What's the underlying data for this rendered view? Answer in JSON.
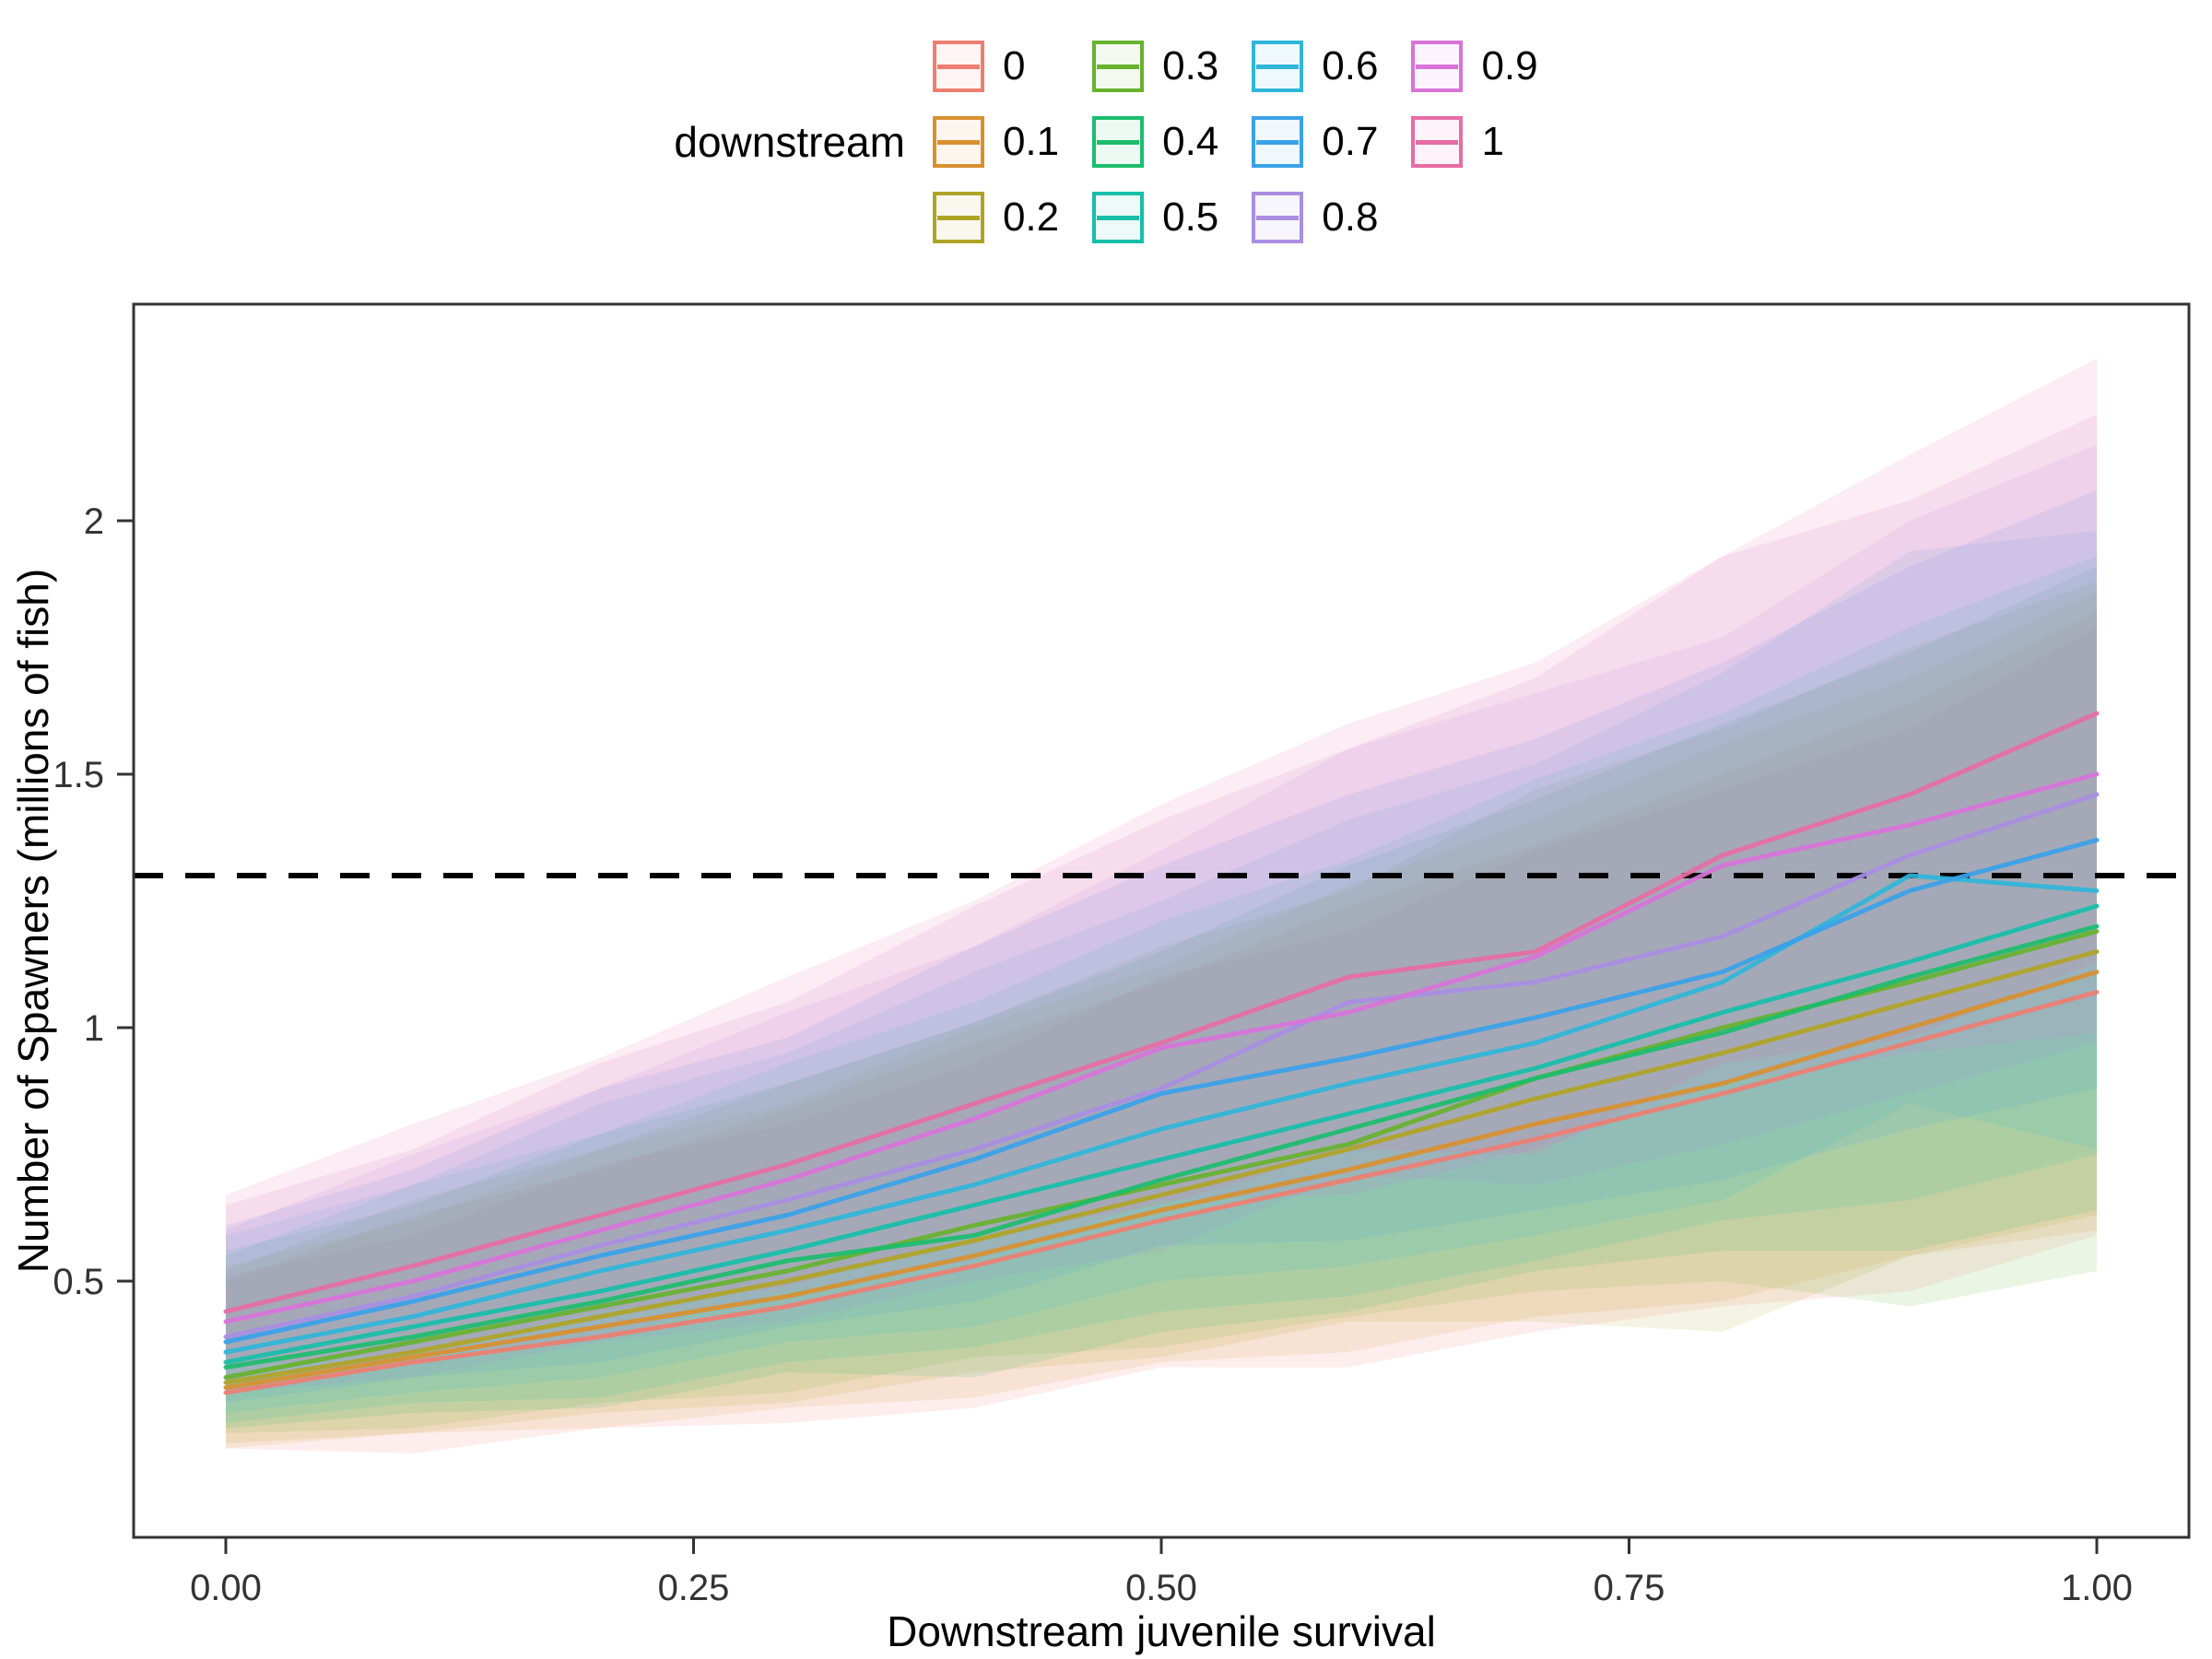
{
  "figure": {
    "background": "#ffffff",
    "panel_border_color": "#333333",
    "tick_color": "#333333",
    "tick_label_color": "#333333",
    "axis_title_color": "#000000"
  },
  "legend": {
    "title": "downstream",
    "rows": 3,
    "position": "top"
  },
  "chart_data": {
    "type": "line",
    "title": "",
    "xlabel": "Downstream juvenile survival",
    "ylabel": "Number of Spawners (millions of fish)",
    "legend_title": "downstream",
    "legend_position": "top",
    "grid": false,
    "xlim": [
      -0.05,
      1.05
    ],
    "ylim": [
      0,
      2.43
    ],
    "x_ticks": {
      "labels": [
        "0.00",
        "0.25",
        "0.50",
        "0.75",
        "1.00"
      ],
      "values": [
        0,
        0.25,
        0.5,
        0.75,
        1
      ]
    },
    "y_ticks": {
      "labels": [
        "0.5",
        "1",
        "1.5",
        "2"
      ],
      "values": [
        0.5,
        1,
        1.5,
        2
      ]
    },
    "reference_line": {
      "y": 1.3,
      "style": "dashed",
      "color": "#000000"
    },
    "ribbon_opacity": 0.13,
    "x": [
      0,
      0.1,
      0.2,
      0.3,
      0.4,
      0.5,
      0.6,
      0.7,
      0.8,
      0.9,
      1.0
    ],
    "series": [
      {
        "name": "0",
        "color": "#ee7e72",
        "values": [
          0.28,
          0.34,
          0.39,
          0.45,
          0.53,
          0.62,
          0.7,
          0.78,
          0.87,
          0.97,
          1.07
        ],
        "lower": [
          0.17,
          0.16,
          0.21,
          0.22,
          0.25,
          0.33,
          0.33,
          0.4,
          0.45,
          0.48,
          0.59
        ],
        "upper": [
          0.51,
          0.59,
          0.73,
          0.81,
          0.93,
          1.1,
          1.19,
          1.35,
          1.47,
          1.59,
          1.79
        ]
      },
      {
        "name": "0.1",
        "color": "#d89030",
        "values": [
          0.29,
          0.35,
          0.41,
          0.47,
          0.55,
          0.64,
          0.72,
          0.81,
          0.89,
          1.0,
          1.11
        ],
        "lower": [
          0.17,
          0.2,
          0.21,
          0.25,
          0.27,
          0.34,
          0.36,
          0.43,
          0.46,
          0.55,
          0.6
        ],
        "upper": [
          0.5,
          0.63,
          0.72,
          0.84,
          0.97,
          1.09,
          1.24,
          1.36,
          1.5,
          1.64,
          1.82
        ]
      },
      {
        "name": "0.2",
        "color": "#b0a426",
        "values": [
          0.3,
          0.36,
          0.43,
          0.5,
          0.58,
          0.67,
          0.76,
          0.86,
          0.95,
          1.05,
          1.15
        ],
        "lower": [
          0.18,
          0.2,
          0.24,
          0.26,
          0.32,
          0.35,
          0.42,
          0.42,
          0.4,
          0.55,
          0.63
        ],
        "upper": [
          0.53,
          0.62,
          0.76,
          0.85,
          1.0,
          1.12,
          1.28,
          1.41,
          1.56,
          1.69,
          1.86
        ]
      },
      {
        "name": "0.3",
        "color": "#67b22e",
        "values": [
          0.31,
          0.38,
          0.45,
          0.52,
          0.61,
          0.69,
          0.77,
          0.9,
          1.0,
          1.09,
          1.19
        ],
        "lower": [
          0.2,
          0.21,
          0.26,
          0.28,
          0.35,
          0.37,
          0.43,
          0.48,
          0.5,
          0.45,
          0.52
        ],
        "upper": [
          0.52,
          0.66,
          0.76,
          0.89,
          1.01,
          1.16,
          1.27,
          1.47,
          1.59,
          1.75,
          1.88
        ]
      },
      {
        "name": "0.4",
        "color": "#1cbd6e",
        "values": [
          0.33,
          0.39,
          0.46,
          0.54,
          0.59,
          0.7,
          0.8,
          0.9,
          0.99,
          1.1,
          1.2
        ],
        "lower": [
          0.21,
          0.24,
          0.25,
          0.32,
          0.31,
          0.4,
          0.44,
          0.52,
          0.56,
          0.56,
          0.64
        ],
        "upper": [
          0.56,
          0.65,
          0.79,
          0.89,
          1.01,
          1.15,
          1.32,
          1.45,
          1.6,
          1.74,
          1.91
        ]
      },
      {
        "name": "0.5",
        "color": "#17bfa8",
        "values": [
          0.34,
          0.41,
          0.48,
          0.56,
          0.65,
          0.74,
          0.83,
          0.92,
          1.03,
          1.13,
          1.24
        ],
        "lower": [
          0.22,
          0.26,
          0.27,
          0.34,
          0.37,
          0.44,
          0.47,
          0.54,
          0.62,
          0.66,
          0.75
        ],
        "upper": [
          0.55,
          0.69,
          0.79,
          0.93,
          1.05,
          1.21,
          1.33,
          1.49,
          1.62,
          1.79,
          1.93
        ]
      },
      {
        "name": "0.6",
        "color": "#2fb6d9",
        "values": [
          0.36,
          0.43,
          0.52,
          0.6,
          0.69,
          0.8,
          0.89,
          0.97,
          1.09,
          1.3,
          1.27
        ],
        "lower": [
          0.24,
          0.28,
          0.31,
          0.38,
          0.41,
          0.5,
          0.53,
          0.59,
          0.66,
          0.85,
          0.76
        ],
        "upper": [
          0.59,
          0.69,
          0.85,
          0.95,
          1.11,
          1.25,
          1.41,
          1.52,
          1.7,
          1.94,
          1.98
        ]
      },
      {
        "name": "0.7",
        "color": "#3aa2e8",
        "values": [
          0.38,
          0.46,
          0.55,
          0.63,
          0.74,
          0.87,
          0.94,
          1.02,
          1.11,
          1.27,
          1.37
        ],
        "lower": [
          0.26,
          0.31,
          0.34,
          0.41,
          0.46,
          0.57,
          0.58,
          0.64,
          0.7,
          0.8,
          0.88
        ],
        "upper": [
          0.61,
          0.72,
          0.88,
          0.98,
          1.16,
          1.32,
          1.46,
          1.57,
          1.72,
          1.91,
          2.06
        ]
      },
      {
        "name": "0.8",
        "color": "#a98ee2",
        "values": [
          0.39,
          0.47,
          0.57,
          0.66,
          0.76,
          0.88,
          1.05,
          1.09,
          1.18,
          1.34,
          1.46
        ],
        "lower": [
          0.28,
          0.31,
          0.38,
          0.42,
          0.5,
          0.56,
          0.71,
          0.69,
          0.77,
          0.87,
          0.97
        ],
        "upper": [
          0.6,
          0.75,
          0.88,
          1.03,
          1.16,
          1.35,
          1.55,
          1.66,
          1.77,
          2.0,
          2.15
        ]
      },
      {
        "name": "0.9",
        "color": "#d873d8",
        "values": [
          0.42,
          0.5,
          0.6,
          0.7,
          0.82,
          0.96,
          1.03,
          1.14,
          1.32,
          1.4,
          1.5
        ],
        "lower": [
          0.3,
          0.35,
          0.39,
          0.48,
          0.54,
          0.66,
          0.67,
          0.76,
          0.89,
          0.95,
          0.99
        ],
        "upper": [
          0.65,
          0.76,
          0.93,
          1.05,
          1.24,
          1.41,
          1.55,
          1.69,
          1.93,
          2.04,
          2.21
        ]
      },
      {
        "name": "1",
        "color": "#e66ca4",
        "values": [
          0.44,
          0.53,
          0.63,
          0.73,
          0.85,
          0.97,
          1.1,
          1.15,
          1.34,
          1.46,
          1.62
        ],
        "lower": [
          0.33,
          0.36,
          0.44,
          0.49,
          0.59,
          0.65,
          0.76,
          0.75,
          0.93,
          0.98,
          1.13
        ],
        "upper": [
          0.67,
          0.81,
          0.94,
          1.1,
          1.25,
          1.44,
          1.6,
          1.72,
          1.93,
          2.13,
          2.32
        ]
      }
    ]
  }
}
